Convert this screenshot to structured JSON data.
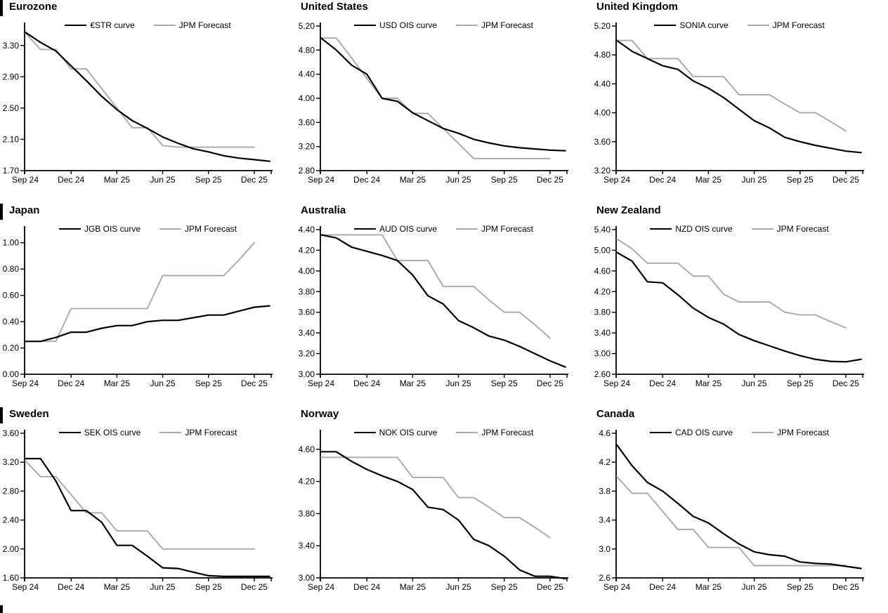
{
  "page": {
    "background": "#ffffff"
  },
  "colors": {
    "series_line": "#000000",
    "forecast_line": "#a9a9a9"
  },
  "x_axis": {
    "labels": [
      "Sep 24",
      "Dec 24",
      "Mar 25",
      "Jun 25",
      "Sep 25",
      "Dec 25"
    ],
    "tick_months": [
      0,
      3,
      6,
      9,
      12,
      15
    ],
    "total_months": 16
  },
  "chart_data": [
    {
      "type": "line",
      "title": "Eurozone",
      "ylim": [
        1.7,
        3.55
      ],
      "y_tick_labels": [
        "1.70",
        "2.10",
        "2.50",
        "2.90",
        "3.30"
      ],
      "x_tick_labels": [
        "Sep 24",
        "Dec 24",
        "Mar 25",
        "Jun 25",
        "Sep 25",
        "Dec 25"
      ],
      "series": [
        {
          "name": "€STR curve",
          "color": "#000000",
          "values": [
            3.47,
            3.34,
            3.23,
            3.04,
            2.85,
            2.65,
            2.48,
            2.34,
            2.24,
            2.13,
            2.05,
            1.98,
            1.94,
            1.89,
            1.86,
            1.84,
            1.82
          ]
        },
        {
          "name": "JPM Forecast",
          "color": "#a9a9a9",
          "values": [
            3.46,
            3.25,
            3.25,
            3.0,
            3.0,
            2.75,
            2.5,
            2.25,
            2.25,
            2.02,
            2.0,
            2.0,
            2.0,
            2.0,
            2.0,
            2.0
          ]
        }
      ]
    },
    {
      "type": "line",
      "title": "United States",
      "ylim": [
        2.8,
        5.2
      ],
      "y_tick_labels": [
        "2.80",
        "3.20",
        "3.60",
        "4.00",
        "4.40",
        "4.80",
        "5.20"
      ],
      "x_tick_labels": [
        "Sep 24",
        "Dec 24",
        "Mar 25",
        "Jun 25",
        "Sep 25",
        "Dec 25"
      ],
      "series": [
        {
          "name": "USD OIS curve",
          "color": "#000000",
          "values": [
            5.0,
            4.8,
            4.55,
            4.4,
            4.0,
            3.95,
            3.76,
            3.63,
            3.5,
            3.42,
            3.32,
            3.26,
            3.21,
            3.18,
            3.16,
            3.14,
            3.13
          ]
        },
        {
          "name": "JPM Forecast",
          "color": "#a9a9a9",
          "values": [
            5.0,
            5.0,
            4.67,
            4.33,
            4.0,
            4.0,
            3.75,
            3.75,
            3.5,
            3.25,
            3.0,
            3.0,
            3.0,
            3.0,
            3.0,
            3.0
          ]
        }
      ]
    },
    {
      "type": "line",
      "title": "United Kingdom",
      "ylim": [
        3.2,
        5.2
      ],
      "y_tick_labels": [
        "3.20",
        "3.60",
        "4.00",
        "4.40",
        "4.80",
        "5.20"
      ],
      "x_tick_labels": [
        "Sep 24",
        "Dec 24",
        "Mar 25",
        "Jun 25",
        "Sep 25",
        "Dec 25"
      ],
      "series": [
        {
          "name": "SONIA curve",
          "color": "#000000",
          "values": [
            5.0,
            4.85,
            4.75,
            4.65,
            4.6,
            4.44,
            4.34,
            4.21,
            4.05,
            3.89,
            3.79,
            3.66,
            3.6,
            3.55,
            3.51,
            3.47,
            3.45
          ]
        },
        {
          "name": "JPM Forecast",
          "color": "#a9a9a9",
          "values": [
            5.0,
            5.0,
            4.75,
            4.75,
            4.75,
            4.5,
            4.5,
            4.5,
            4.25,
            4.25,
            4.25,
            4.12,
            4.0,
            4.0,
            3.88,
            3.75
          ]
        }
      ]
    },
    {
      "type": "line",
      "title": "Japan",
      "ylim": [
        0.0,
        1.1
      ],
      "y_tick_labels": [
        "0.00",
        "0.20",
        "0.40",
        "0.60",
        "0.80",
        "1.00"
      ],
      "x_tick_labels": [
        "Sep 24",
        "Dec 24",
        "Mar 25",
        "Jun 25",
        "Sep 25",
        "Dec 25"
      ],
      "series": [
        {
          "name": "JGB OIS curve",
          "color": "#000000",
          "values": [
            0.25,
            0.25,
            0.28,
            0.32,
            0.32,
            0.35,
            0.37,
            0.37,
            0.4,
            0.41,
            0.41,
            0.43,
            0.45,
            0.45,
            0.48,
            0.51,
            0.52
          ]
        },
        {
          "name": "JPM Forecast",
          "color": "#a9a9a9",
          "values": [
            0.25,
            0.25,
            0.25,
            0.5,
            0.5,
            0.5,
            0.5,
            0.5,
            0.5,
            0.75,
            0.75,
            0.75,
            0.75,
            0.75,
            0.87,
            1.0
          ]
        }
      ]
    },
    {
      "type": "line",
      "title": "Australia",
      "ylim": [
        3.0,
        4.4
      ],
      "y_tick_labels": [
        "3.00",
        "3.20",
        "3.40",
        "3.60",
        "3.80",
        "4.00",
        "4.20",
        "4.40"
      ],
      "x_tick_labels": [
        "Sep 24",
        "Dec 24",
        "Mar 25",
        "Jun 25",
        "Sep 25",
        "Dec 25"
      ],
      "series": [
        {
          "name": "AUD OIS curve",
          "color": "#000000",
          "values": [
            4.35,
            4.32,
            4.23,
            4.19,
            4.15,
            4.1,
            3.96,
            3.76,
            3.68,
            3.52,
            3.45,
            3.37,
            3.33,
            3.27,
            3.2,
            3.13,
            3.07
          ]
        },
        {
          "name": "JPM Forecast",
          "color": "#a9a9a9",
          "values": [
            4.35,
            4.35,
            4.35,
            4.35,
            4.35,
            4.1,
            4.1,
            4.1,
            3.85,
            3.85,
            3.85,
            3.72,
            3.6,
            3.6,
            3.48,
            3.35
          ]
        }
      ]
    },
    {
      "type": "line",
      "title": "New Zealand",
      "ylim": [
        2.6,
        5.4
      ],
      "y_tick_labels": [
        "2.60",
        "3.00",
        "3.40",
        "3.80",
        "4.20",
        "4.60",
        "5.00",
        "5.40"
      ],
      "x_tick_labels": [
        "Sep 24",
        "Dec 24",
        "Mar 25",
        "Jun 25",
        "Sep 25",
        "Dec 25"
      ],
      "series": [
        {
          "name": "NZD OIS curve",
          "color": "#000000",
          "values": [
            4.96,
            4.79,
            4.39,
            4.37,
            4.14,
            3.88,
            3.7,
            3.57,
            3.37,
            3.25,
            3.15,
            3.05,
            2.96,
            2.89,
            2.85,
            2.84,
            2.89
          ]
        },
        {
          "name": "JPM Forecast",
          "color": "#a9a9a9",
          "values": [
            5.22,
            5.03,
            4.75,
            4.75,
            4.75,
            4.5,
            4.5,
            4.15,
            4.0,
            4.0,
            4.0,
            3.8,
            3.75,
            3.75,
            3.62,
            3.5
          ]
        }
      ]
    },
    {
      "type": "line",
      "title": "Sweden",
      "ylim": [
        1.6,
        3.6
      ],
      "y_tick_labels": [
        "1.60",
        "2.00",
        "2.40",
        "2.80",
        "3.20",
        "3.60"
      ],
      "x_tick_labels": [
        "Sep 24",
        "Dec 24",
        "Mar 25",
        "Jun 25",
        "Sep 25",
        "Dec 25"
      ],
      "series": [
        {
          "name": "SEK OIS curve",
          "color": "#000000",
          "values": [
            3.25,
            3.25,
            2.94,
            2.53,
            2.53,
            2.37,
            2.05,
            2.05,
            1.9,
            1.74,
            1.73,
            1.68,
            1.63,
            1.62,
            1.62,
            1.62,
            1.62
          ]
        },
        {
          "name": "JPM Forecast",
          "color": "#a9a9a9",
          "values": [
            3.22,
            3.0,
            3.0,
            2.75,
            2.5,
            2.5,
            2.25,
            2.25,
            2.25,
            2.0,
            2.0,
            2.0,
            2.0,
            2.0,
            2.0,
            2.0
          ]
        }
      ]
    },
    {
      "type": "line",
      "title": "Norway",
      "ylim": [
        3.0,
        4.8
      ],
      "y_tick_labels": [
        "3.00",
        "3.40",
        "3.80",
        "4.20",
        "4.60"
      ],
      "x_tick_labels": [
        "Sep 24",
        "Dec 24",
        "Mar 25",
        "Jun 25",
        "Sep 25",
        "Dec 25"
      ],
      "series": [
        {
          "name": "NOK OIS curve",
          "color": "#000000",
          "values": [
            4.57,
            4.57,
            4.45,
            4.35,
            4.27,
            4.2,
            4.1,
            3.88,
            3.85,
            3.72,
            3.48,
            3.4,
            3.27,
            3.1,
            3.02,
            3.02,
            2.99
          ]
        },
        {
          "name": "JPM Forecast",
          "color": "#a9a9a9",
          "values": [
            4.5,
            4.5,
            4.5,
            4.5,
            4.5,
            4.5,
            4.25,
            4.25,
            4.25,
            4.0,
            4.0,
            3.88,
            3.75,
            3.75,
            3.63,
            3.5
          ]
        }
      ]
    },
    {
      "type": "line",
      "title": "Canada",
      "ylim": [
        2.6,
        4.6
      ],
      "y_tick_labels": [
        "2.6",
        "3.0",
        "3.4",
        "3.8",
        "4.2",
        "4.6"
      ],
      "x_tick_labels": [
        "Sep 24",
        "Dec 24",
        "Mar 25",
        "Jun 25",
        "Sep 25",
        "Dec 25"
      ],
      "series": [
        {
          "name": "CAD OIS curve",
          "color": "#000000",
          "values": [
            4.44,
            4.15,
            3.92,
            3.8,
            3.63,
            3.45,
            3.36,
            3.21,
            3.07,
            2.96,
            2.92,
            2.9,
            2.82,
            2.8,
            2.79,
            2.76,
            2.73
          ]
        },
        {
          "name": "JPM Forecast",
          "color": "#a9a9a9",
          "values": [
            4.0,
            3.77,
            3.77,
            3.52,
            3.27,
            3.27,
            3.02,
            3.02,
            3.02,
            2.77,
            2.77,
            2.77,
            2.77,
            2.77,
            2.77,
            2.77
          ]
        }
      ]
    }
  ]
}
